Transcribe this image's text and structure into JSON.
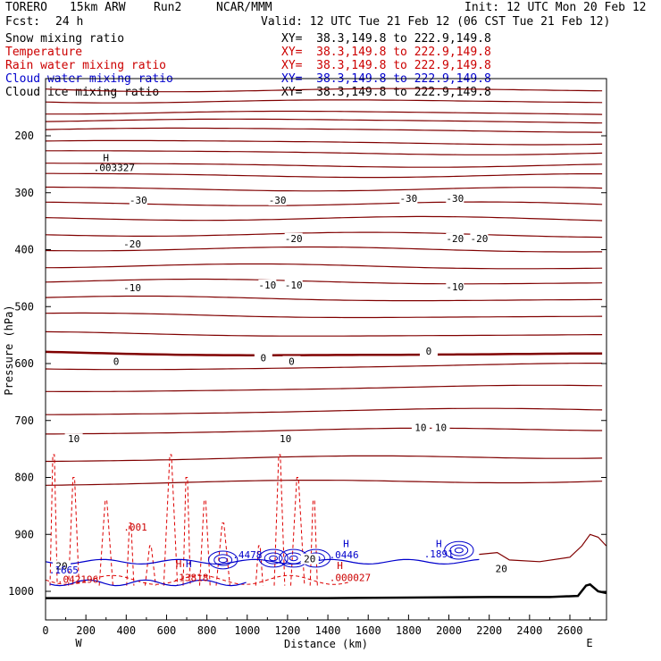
{
  "header": {
    "model": "TORERO",
    "resolution": "15km ARW",
    "run": "Run2",
    "org": "NCAR/MMM",
    "init": "Init: 12 UTC Mon 20 Feb 12",
    "fcst_label": "Fcst:",
    "fcst_value": "24 h",
    "valid": "Valid: 12 UTC Tue 21 Feb 12 (06 CST Tue 21 Feb 12)"
  },
  "fields": [
    {
      "name": "Snow mixing ratio",
      "xy": "XY=  38.3,149.8 to 222.9,149.8",
      "color": "#000000"
    },
    {
      "name": "Temperature",
      "xy": "XY=  38.3,149.8 to 222.9,149.8",
      "color": "#cc0000"
    },
    {
      "name": "Rain water mixing ratio",
      "xy": "XY=  38.3,149.8 to 222.9,149.8",
      "color": "#cc0000"
    },
    {
      "name": "Cloud water mixing ratio",
      "xy": "XY=  38.3,149.8 to 222.9,149.8",
      "color": "#0000cc"
    },
    {
      "name": "Cloud ice mixing ratio",
      "xy": "XY=  38.3,149.8 to 222.9,149.8",
      "color": "#000000"
    }
  ],
  "chart_data": {
    "type": "line",
    "xlabel": "Distance (km)",
    "ylabel": "Pressure (hPa)",
    "xlim": [
      0,
      2780
    ],
    "ylim": [
      1050,
      100
    ],
    "x_ticks": [
      0,
      200,
      400,
      600,
      800,
      1000,
      1200,
      1400,
      1600,
      1800,
      2000,
      2200,
      2400,
      2600
    ],
    "y_ticks": [
      200,
      300,
      400,
      500,
      600,
      700,
      800,
      900,
      1000
    ],
    "left_label": "W",
    "right_label": "E",
    "colors": {
      "temperature": "#800000",
      "rain": "#dd0000",
      "cloud_water": "#0000cc",
      "cloud_ice": "#000000"
    },
    "temperature_isotherms_p": [
      118,
      138,
      158,
      172,
      188,
      210,
      228,
      250,
      268,
      292,
      318,
      344,
      372,
      398,
      428,
      455,
      485,
      515,
      548,
      582,
      610,
      648,
      688,
      722,
      770,
      812
    ],
    "freezing_level_p": 582,
    "temperature_labels": [
      {
        "text": "-30",
        "x": 460,
        "p": 313
      },
      {
        "text": "-30",
        "x": 1150,
        "p": 313
      },
      {
        "text": "-30",
        "x": 1800,
        "p": 310
      },
      {
        "text": "-30",
        "x": 2030,
        "p": 310
      },
      {
        "text": "-20",
        "x": 430,
        "p": 390
      },
      {
        "text": "-20",
        "x": 1230,
        "p": 380
      },
      {
        "text": "-20",
        "x": 2030,
        "p": 380
      },
      {
        "text": "-20",
        "x": 2150,
        "p": 380
      },
      {
        "text": "-10",
        "x": 430,
        "p": 467
      },
      {
        "text": "-10",
        "x": 1100,
        "p": 462
      },
      {
        "text": "-10",
        "x": 1230,
        "p": 462
      },
      {
        "text": "-10",
        "x": 2030,
        "p": 465
      },
      {
        "text": "0",
        "x": 350,
        "p": 596
      },
      {
        "text": "0",
        "x": 1080,
        "p": 590
      },
      {
        "text": "0",
        "x": 1220,
        "p": 596
      },
      {
        "text": "0",
        "x": 1900,
        "p": 578
      },
      {
        "text": "10",
        "x": 140,
        "p": 732
      },
      {
        "text": "10",
        "x": 1190,
        "p": 732
      },
      {
        "text": "10",
        "x": 1860,
        "p": 712
      },
      {
        "text": "10",
        "x": 1960,
        "p": 712
      },
      {
        "text": "20",
        "x": 80,
        "p": 955
      },
      {
        "text": "20",
        "x": 1310,
        "p": 943
      },
      {
        "text": "20",
        "x": 2260,
        "p": 960
      }
    ],
    "extrema_labels": [
      {
        "text": "H",
        "x": 300,
        "p": 245,
        "color": "#000000"
      },
      {
        "text": ".003327",
        "x": 340,
        "p": 262,
        "color": "#000000"
      },
      {
        "text": ".1665",
        "x": 90,
        "p": 969,
        "color": "#0000cc"
      },
      {
        "text": ".042196",
        "x": 160,
        "p": 985,
        "color": "#cc0000"
      },
      {
        "text": "H",
        "x": 660,
        "p": 958,
        "color": "#cc0000"
      },
      {
        "text": "H",
        "x": 710,
        "p": 958,
        "color": "#0000cc"
      },
      {
        "text": ".13818",
        "x": 720,
        "p": 982,
        "color": "#cc0000"
      },
      {
        "text": ".4478",
        "x": 1000,
        "p": 942,
        "color": "#0000cc"
      },
      {
        "text": "H",
        "x": 1490,
        "p": 922,
        "color": "#0000cc"
      },
      {
        "text": ".0446",
        "x": 1480,
        "p": 942,
        "color": "#0000cc"
      },
      {
        "text": "H",
        "x": 1460,
        "p": 961,
        "color": "#cc0000"
      },
      {
        "text": ".000027",
        "x": 1510,
        "p": 982,
        "color": "#cc0000"
      },
      {
        "text": "H",
        "x": 1950,
        "p": 922,
        "color": "#0000cc"
      },
      {
        "text": ".1891",
        "x": 1950,
        "p": 940,
        "color": "#0000cc"
      },
      {
        "text": ".001",
        "x": 445,
        "p": 893,
        "color": "#cc0000"
      }
    ],
    "terrain": [
      [
        0,
        1012
      ],
      [
        600,
        1012
      ],
      [
        1000,
        1012
      ],
      [
        1400,
        1012
      ],
      [
        1800,
        1011
      ],
      [
        2200,
        1010
      ],
      [
        2500,
        1010
      ],
      [
        2640,
        1008
      ],
      [
        2680,
        990
      ],
      [
        2700,
        988
      ],
      [
        2740,
        1000
      ],
      [
        2780,
        1003
      ]
    ],
    "isotherm_20_right": [
      [
        2150,
        935
      ],
      [
        2240,
        932
      ],
      [
        2300,
        945
      ],
      [
        2450,
        948
      ],
      [
        2600,
        940
      ],
      [
        2660,
        920
      ],
      [
        2700,
        900
      ],
      [
        2740,
        905
      ],
      [
        2780,
        920
      ]
    ],
    "rain_spikes_x": [
      40,
      140,
      300,
      420,
      520,
      620,
      700,
      790,
      880,
      1060,
      1160,
      1250,
      1330
    ],
    "cloud_water_cells": [
      {
        "x": 1130,
        "p": 942
      },
      {
        "x": 1230,
        "p": 942
      },
      {
        "x": 1340,
        "p": 942
      },
      {
        "x": 880,
        "p": 945
      },
      {
        "x": 2050,
        "p": 928
      }
    ]
  }
}
